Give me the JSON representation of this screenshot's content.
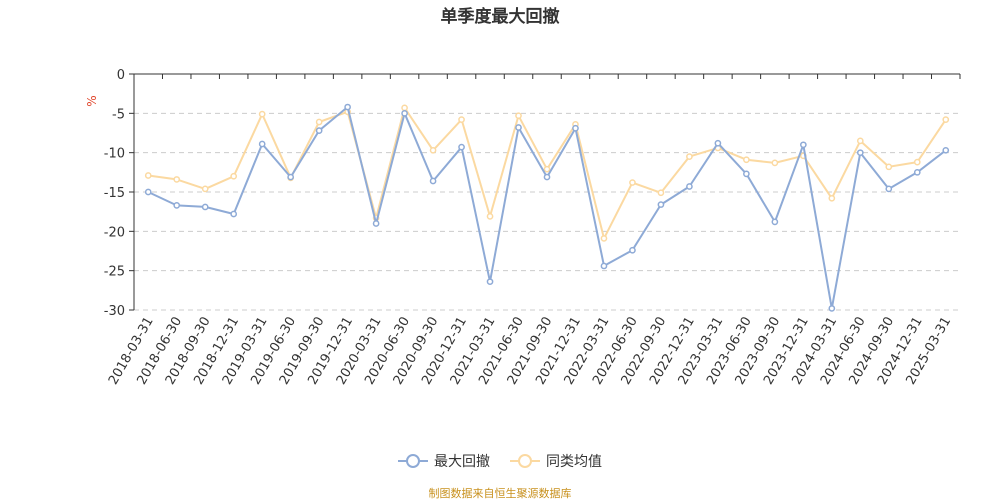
{
  "chart_data": {
    "type": "line",
    "title": "单季度最大回撤",
    "ylabel": "%",
    "ylim": [
      -30,
      0
    ],
    "yticks": [
      0,
      -5,
      -10,
      -15,
      -20,
      -25,
      -30
    ],
    "grid": true,
    "legend_position": "bottom-center",
    "categories": [
      "2018-03-31",
      "2018-06-30",
      "2018-09-30",
      "2018-12-31",
      "2019-03-31",
      "2019-06-30",
      "2019-09-30",
      "2019-12-31",
      "2020-03-31",
      "2020-06-30",
      "2020-09-30",
      "2020-12-31",
      "2021-03-31",
      "2021-06-30",
      "2021-09-30",
      "2021-12-31",
      "2022-03-31",
      "2022-06-30",
      "2022-09-30",
      "2022-12-31",
      "2023-03-31",
      "2023-06-30",
      "2023-09-30",
      "2023-12-31",
      "2024-03-31",
      "2024-06-30",
      "2024-09-30",
      "2024-12-31",
      "2025-03-31"
    ],
    "series": [
      {
        "name": "最大回撤",
        "color": "#8eaad6",
        "values": [
          -15.0,
          -16.7,
          -16.9,
          -17.8,
          -8.9,
          -13.1,
          -7.2,
          -4.2,
          -19.0,
          -5.0,
          -13.6,
          -9.3,
          -26.4,
          -6.8,
          -13.1,
          -6.9,
          -24.4,
          -22.4,
          -16.6,
          -14.3,
          -8.8,
          -12.7,
          -18.8,
          -9.0,
          -29.8,
          -10.0,
          -14.6,
          -12.5,
          -9.7
        ]
      },
      {
        "name": "同类均值",
        "color": "#fbd9a1",
        "values": [
          -12.9,
          -13.4,
          -14.6,
          -13.0,
          -5.1,
          -13.2,
          -6.1,
          -4.8,
          -18.3,
          -4.3,
          -9.7,
          -5.8,
          -18.1,
          -5.3,
          -12.1,
          -6.4,
          -20.9,
          -13.8,
          -15.1,
          -10.5,
          -9.4,
          -10.9,
          -11.3,
          -10.4,
          -15.8,
          -8.5,
          -11.8,
          -11.2,
          -5.8
        ]
      }
    ]
  },
  "source_text": "制图数据来自恒生聚源数据库"
}
